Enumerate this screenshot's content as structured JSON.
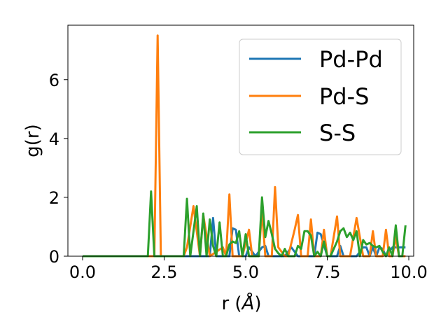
{
  "chart_data": {
    "type": "line",
    "title": "",
    "xlabel": "r (",
    "xlabel_unit": "Å",
    "xlabel_close": ")",
    "ylabel": "g(r)",
    "xlim": [
      -0.45,
      10.15
    ],
    "ylim": [
      0,
      7.85
    ],
    "xticks": [
      0.0,
      2.5,
      5.0,
      7.5,
      10.0
    ],
    "xtick_labels": [
      "0.0",
      "2.5",
      "5.0",
      "7.5",
      "10.0"
    ],
    "yticks": [
      0,
      2,
      4,
      6
    ],
    "ytick_labels": [
      "0",
      "2",
      "4",
      "6"
    ],
    "grid": false,
    "legend_position": "top-right",
    "series": [
      {
        "name": "Pd-Pd",
        "color": "#1f77b4",
        "x": [
          0.0,
          3.0,
          3.9,
          4.0,
          4.1,
          4.5,
          4.6,
          4.7,
          4.8,
          5.0,
          5.1,
          5.3,
          5.5,
          5.6,
          5.7,
          5.8,
          6.2,
          6.4,
          6.6,
          7.1,
          7.2,
          7.3,
          7.5,
          7.8,
          7.9,
          8.0,
          8.4,
          8.6,
          8.7,
          8.8,
          8.9,
          9.0,
          9.1,
          9.2,
          9.3,
          9.5,
          9.9
        ],
        "y": [
          0.0,
          0.0,
          0.0,
          1.3,
          0.0,
          0.0,
          0.95,
          0.9,
          0.0,
          0.0,
          0.3,
          0.0,
          0.3,
          0.35,
          0.0,
          0.0,
          0.0,
          0.3,
          0.0,
          0.0,
          0.8,
          0.75,
          0.0,
          0.0,
          0.35,
          0.0,
          0.0,
          0.3,
          0.3,
          0.0,
          0.3,
          0.0,
          0.3,
          0.25,
          0.0,
          0.3,
          0.3
        ]
      },
      {
        "name": "Pd-S",
        "color": "#ff7f0e",
        "x": [
          0.0,
          2.2,
          2.3,
          2.4,
          3.1,
          3.2,
          3.4,
          3.6,
          3.7,
          3.9,
          4.3,
          4.4,
          4.5,
          4.6,
          4.9,
          5.1,
          5.2,
          5.4,
          5.5,
          5.6,
          5.8,
          5.9,
          6.0,
          6.2,
          6.3,
          6.5,
          6.6,
          6.7,
          6.9,
          7.0,
          7.1,
          7.3,
          7.4,
          7.5,
          7.6,
          7.8,
          7.9,
          8.0,
          8.2,
          8.4,
          8.6,
          8.8,
          8.9,
          9.0,
          9.2,
          9.3,
          9.4,
          9.5,
          9.6,
          9.7,
          9.9
        ],
        "y": [
          0.0,
          0.0,
          7.5,
          0.0,
          0.0,
          0.3,
          1.7,
          0.0,
          1.4,
          0.0,
          0.3,
          0.0,
          2.1,
          0.0,
          0.0,
          0.9,
          0.0,
          0.0,
          1.55,
          0.0,
          0.0,
          2.35,
          0.3,
          0.0,
          0.0,
          0.9,
          1.4,
          0.0,
          0.0,
          1.25,
          0.0,
          0.0,
          0.9,
          0.0,
          0.0,
          1.35,
          0.0,
          0.0,
          0.0,
          1.3,
          0.0,
          0.0,
          0.85,
          0.0,
          0.0,
          0.9,
          0.0,
          0.0,
          0.65,
          0.0,
          0.0
        ]
      },
      {
        "name": "S-S",
        "color": "#2ca02c",
        "x": [
          0.0,
          2.0,
          2.1,
          2.2,
          3.0,
          3.1,
          3.2,
          3.3,
          3.5,
          3.6,
          3.7,
          3.8,
          3.9,
          4.0,
          4.1,
          4.2,
          4.3,
          4.4,
          4.5,
          4.6,
          4.7,
          4.8,
          4.9,
          5.0,
          5.1,
          5.2,
          5.3,
          5.4,
          5.5,
          5.6,
          5.7,
          5.8,
          5.9,
          6.0,
          6.1,
          6.2,
          6.3,
          6.4,
          6.5,
          6.6,
          6.7,
          6.8,
          6.9,
          7.0,
          7.1,
          7.2,
          7.3,
          7.4,
          7.5,
          7.6,
          7.7,
          7.8,
          7.9,
          8.0,
          8.1,
          8.2,
          8.3,
          8.4,
          8.5,
          8.6,
          8.7,
          8.8,
          8.9,
          9.0,
          9.1,
          9.2,
          9.3,
          9.4,
          9.5,
          9.6,
          9.7,
          9.8,
          9.9
        ],
        "y": [
          0.0,
          0.0,
          2.2,
          0.0,
          0.0,
          0.0,
          1.95,
          0.0,
          1.7,
          0.0,
          1.45,
          0.0,
          1.25,
          0.35,
          0.0,
          1.15,
          0.0,
          0.0,
          0.4,
          0.5,
          0.45,
          0.85,
          0.0,
          0.75,
          0.0,
          0.0,
          0.0,
          0.0,
          2.0,
          0.65,
          1.2,
          0.75,
          0.25,
          0.1,
          0.0,
          0.25,
          0.0,
          0.0,
          0.0,
          0.35,
          0.25,
          0.85,
          0.85,
          0.7,
          0.0,
          0.15,
          0.0,
          0.5,
          0.0,
          0.0,
          0.25,
          0.5,
          0.85,
          0.95,
          0.65,
          0.8,
          0.55,
          0.85,
          0.0,
          0.55,
          0.4,
          0.45,
          0.35,
          0.3,
          0.35,
          0.15,
          0.0,
          0.3,
          0.0,
          1.05,
          0.0,
          0.0,
          1.05
        ]
      }
    ]
  }
}
